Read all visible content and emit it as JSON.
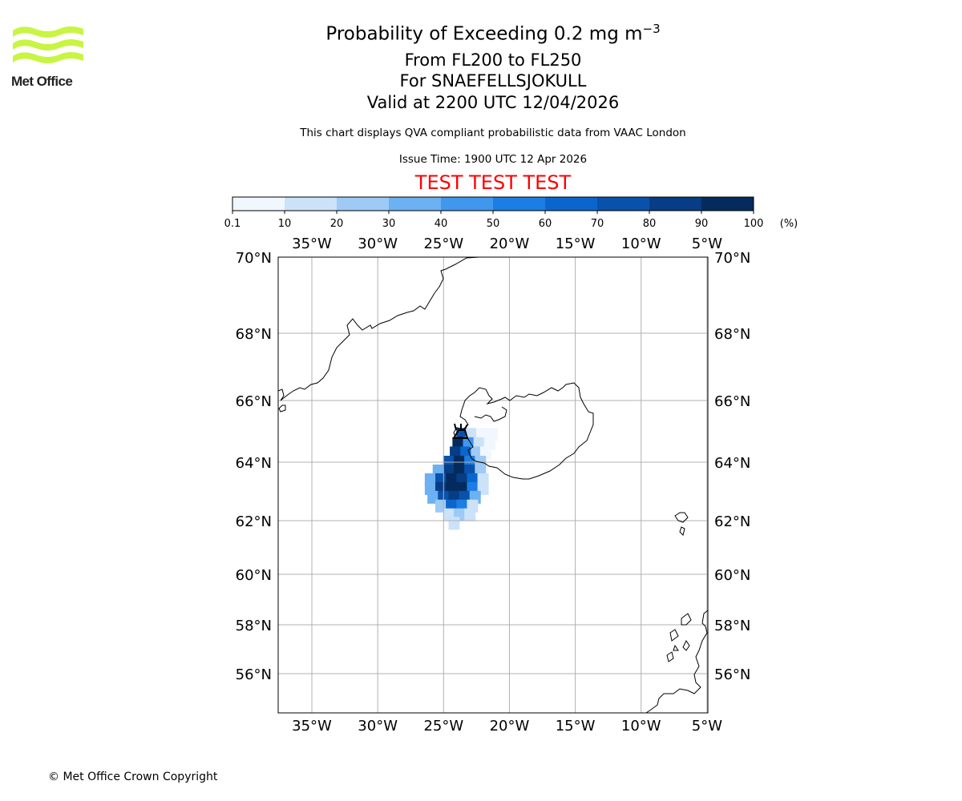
{
  "logo": {
    "text": "Met Office",
    "color": "#c8f542"
  },
  "title": {
    "main_text": "Probability of Exceeding 0.2 mg m",
    "main_sup": "−3",
    "line2": "From FL200 to FL250",
    "line3": "For SNAEFELLSJOKULL",
    "line4": "Valid at 2200 UTC 12/04/2026"
  },
  "subtitle": {
    "description": "This chart displays QVA compliant probabilistic data from VAAC London",
    "issue_time": "Issue Time: 1900 UTC 12 Apr 2026"
  },
  "test_banner": {
    "text": "TEST TEST TEST",
    "color": "#ff0000"
  },
  "colorbar": {
    "ticks": [
      "0.1",
      "10",
      "20",
      "30",
      "40",
      "50",
      "60",
      "70",
      "80",
      "90",
      "100"
    ],
    "unit": "(%)",
    "colors": [
      "#f1f7fe",
      "#cbe2f9",
      "#9ecaf5",
      "#6cb1f1",
      "#3f97ee",
      "#1c7ee4",
      "#0a66cc",
      "#0852ab",
      "#063d84",
      "#042b5e"
    ]
  },
  "chart_data": {
    "type": "heatmap",
    "title": "Probability of Exceeding 0.2 mg m−3",
    "projection": "polar stereographic",
    "lon_ticks": [
      {
        "value": -35,
        "label": "35°W"
      },
      {
        "value": -30,
        "label": "30°W"
      },
      {
        "value": -25,
        "label": "25°W"
      },
      {
        "value": -20,
        "label": "20°W"
      },
      {
        "value": -15,
        "label": "15°W"
      },
      {
        "value": -10,
        "label": "10°W"
      },
      {
        "value": -5,
        "label": "5°W"
      }
    ],
    "lat_ticks": [
      {
        "value": 70,
        "label": "70°N"
      },
      {
        "value": 68,
        "label": "68°N"
      },
      {
        "value": 66,
        "label": "66°N"
      },
      {
        "value": 64,
        "label": "64°N"
      },
      {
        "value": 62,
        "label": "62°N"
      },
      {
        "value": 60,
        "label": "60°N"
      },
      {
        "value": 58,
        "label": "58°N"
      },
      {
        "value": 56,
        "label": "56°N"
      }
    ],
    "lon_range": [
      -37.5,
      -5
    ],
    "lat_range": [
      54.8,
      70
    ],
    "volcano": {
      "name": "SNAEFELLSJOKULL",
      "lat": 64.8,
      "lon": -23.8
    },
    "probability_cells": [
      {
        "lat": 64.9,
        "lon": -23.6,
        "p": 75
      },
      {
        "lat": 64.9,
        "lon": -22.9,
        "p": 10
      },
      {
        "lat": 64.9,
        "lon": -22.1,
        "p": 5
      },
      {
        "lat": 64.9,
        "lon": -21.3,
        "p": 5
      },
      {
        "lat": 64.6,
        "lon": -23.9,
        "p": 90
      },
      {
        "lat": 64.6,
        "lon": -23.1,
        "p": 45
      },
      {
        "lat": 64.6,
        "lon": -22.3,
        "p": 12
      },
      {
        "lat": 64.6,
        "lon": -21.5,
        "p": 5
      },
      {
        "lat": 64.3,
        "lon": -24.1,
        "p": 85
      },
      {
        "lat": 64.3,
        "lon": -23.3,
        "p": 65
      },
      {
        "lat": 64.3,
        "lon": -22.5,
        "p": 25
      },
      {
        "lat": 64.3,
        "lon": -21.8,
        "p": 8
      },
      {
        "lat": 64.0,
        "lon": -24.6,
        "p": 70
      },
      {
        "lat": 64.0,
        "lon": -23.8,
        "p": 90
      },
      {
        "lat": 64.0,
        "lon": -23.0,
        "p": 55
      },
      {
        "lat": 64.0,
        "lon": -22.2,
        "p": 20
      },
      {
        "lat": 63.7,
        "lon": -25.4,
        "p": 35
      },
      {
        "lat": 63.7,
        "lon": -24.6,
        "p": 85
      },
      {
        "lat": 63.7,
        "lon": -23.8,
        "p": 92
      },
      {
        "lat": 63.7,
        "lon": -23.0,
        "p": 70
      },
      {
        "lat": 63.7,
        "lon": -22.2,
        "p": 25
      },
      {
        "lat": 63.4,
        "lon": -26.0,
        "p": 30
      },
      {
        "lat": 63.4,
        "lon": -25.2,
        "p": 75
      },
      {
        "lat": 63.4,
        "lon": -24.4,
        "p": 95
      },
      {
        "lat": 63.4,
        "lon": -23.6,
        "p": 88
      },
      {
        "lat": 63.4,
        "lon": -22.8,
        "p": 60
      },
      {
        "lat": 63.4,
        "lon": -22.0,
        "p": 15
      },
      {
        "lat": 63.1,
        "lon": -26.0,
        "p": 35
      },
      {
        "lat": 63.1,
        "lon": -25.2,
        "p": 85
      },
      {
        "lat": 63.1,
        "lon": -24.4,
        "p": 97
      },
      {
        "lat": 63.1,
        "lon": -23.6,
        "p": 90
      },
      {
        "lat": 63.1,
        "lon": -22.8,
        "p": 55
      },
      {
        "lat": 63.1,
        "lon": -22.0,
        "p": 12
      },
      {
        "lat": 62.8,
        "lon": -25.8,
        "p": 30
      },
      {
        "lat": 62.8,
        "lon": -25.0,
        "p": 75
      },
      {
        "lat": 62.8,
        "lon": -24.2,
        "p": 88
      },
      {
        "lat": 62.8,
        "lon": -23.4,
        "p": 70
      },
      {
        "lat": 62.8,
        "lon": -22.6,
        "p": 30
      },
      {
        "lat": 62.5,
        "lon": -25.2,
        "p": 25
      },
      {
        "lat": 62.5,
        "lon": -24.4,
        "p": 60
      },
      {
        "lat": 62.5,
        "lon": -23.6,
        "p": 50
      },
      {
        "lat": 62.5,
        "lon": -22.8,
        "p": 15
      },
      {
        "lat": 62.2,
        "lon": -24.6,
        "p": 15
      },
      {
        "lat": 62.2,
        "lon": -23.8,
        "p": 25
      },
      {
        "lat": 62.2,
        "lon": -23.0,
        "p": 10
      },
      {
        "lat": 61.9,
        "lon": -24.2,
        "p": 12
      }
    ]
  },
  "copyright": "© Met Office Crown Copyright"
}
